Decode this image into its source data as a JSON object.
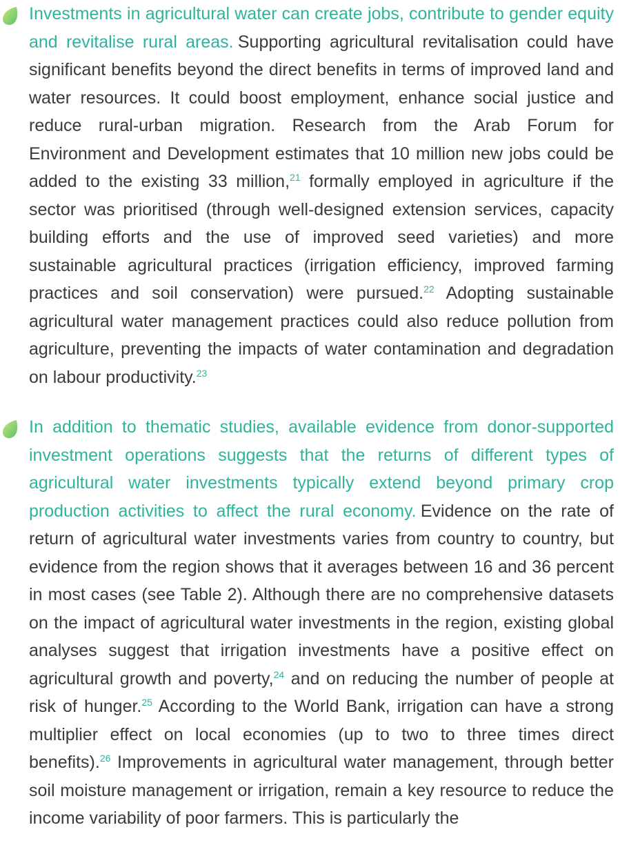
{
  "paragraphs": [
    {
      "lead": "Investments in agricultural water can create jobs, contribute to gender equity and revitalise rural areas.",
      "parts": [
        {
          "text": "Supporting agricultural revitalisation could have significant benefits beyond the direct benefits in terms of improved land and water resources. It could boost employment, enhance social justice and reduce rural-urban migration. Research from the Arab Forum for Environment and Development estimates that 10 million new jobs could be added to the existing 33 million,"
        },
        {
          "note": "21"
        },
        {
          "text": " formally employed in agriculture if the sector was prioritised (through well-designed extension services, capacity building efforts and the use of improved seed varieties) and more sustainable agricultural practices (irrigation efficiency, improved farming practices and soil conservation) were pursued."
        },
        {
          "note": "22"
        },
        {
          "text": " Adopting sustainable agricultural water management practices could also reduce pollution from agriculture, preventing the impacts of water contamination and degradation on labour productivity."
        },
        {
          "note": "23"
        }
      ]
    },
    {
      "lead": "In addition to thematic studies, available evidence from donor-supported investment operations suggests that the returns of different types of agricultural water investments typically extend beyond primary crop production activities to affect the rural economy.",
      "parts": [
        {
          "text": "Evidence on the rate of return of agricultural water investments varies from country to country, but evidence from the region shows that it averages between 16 and 36 percent in most cases (see Table 2). Although there are no comprehensive datasets on the impact of agricultural water investments in the region, existing global analyses suggest that irrigation investments have a positive effect on agricultural growth and poverty,"
        },
        {
          "note": "24"
        },
        {
          "text": " and on reducing the number of people at risk of hunger."
        },
        {
          "note": "25"
        },
        {
          "text": " According to the World Bank, irrigation can have a strong multiplier effect on local economies (up to two to three times direct benefits)."
        },
        {
          "note": "26"
        },
        {
          "text": " Improvements in agricultural water management, through better soil moisture management or irrigation, remain a key resource to reduce the income variability of poor farmers. This is particularly the"
        }
      ]
    }
  ]
}
